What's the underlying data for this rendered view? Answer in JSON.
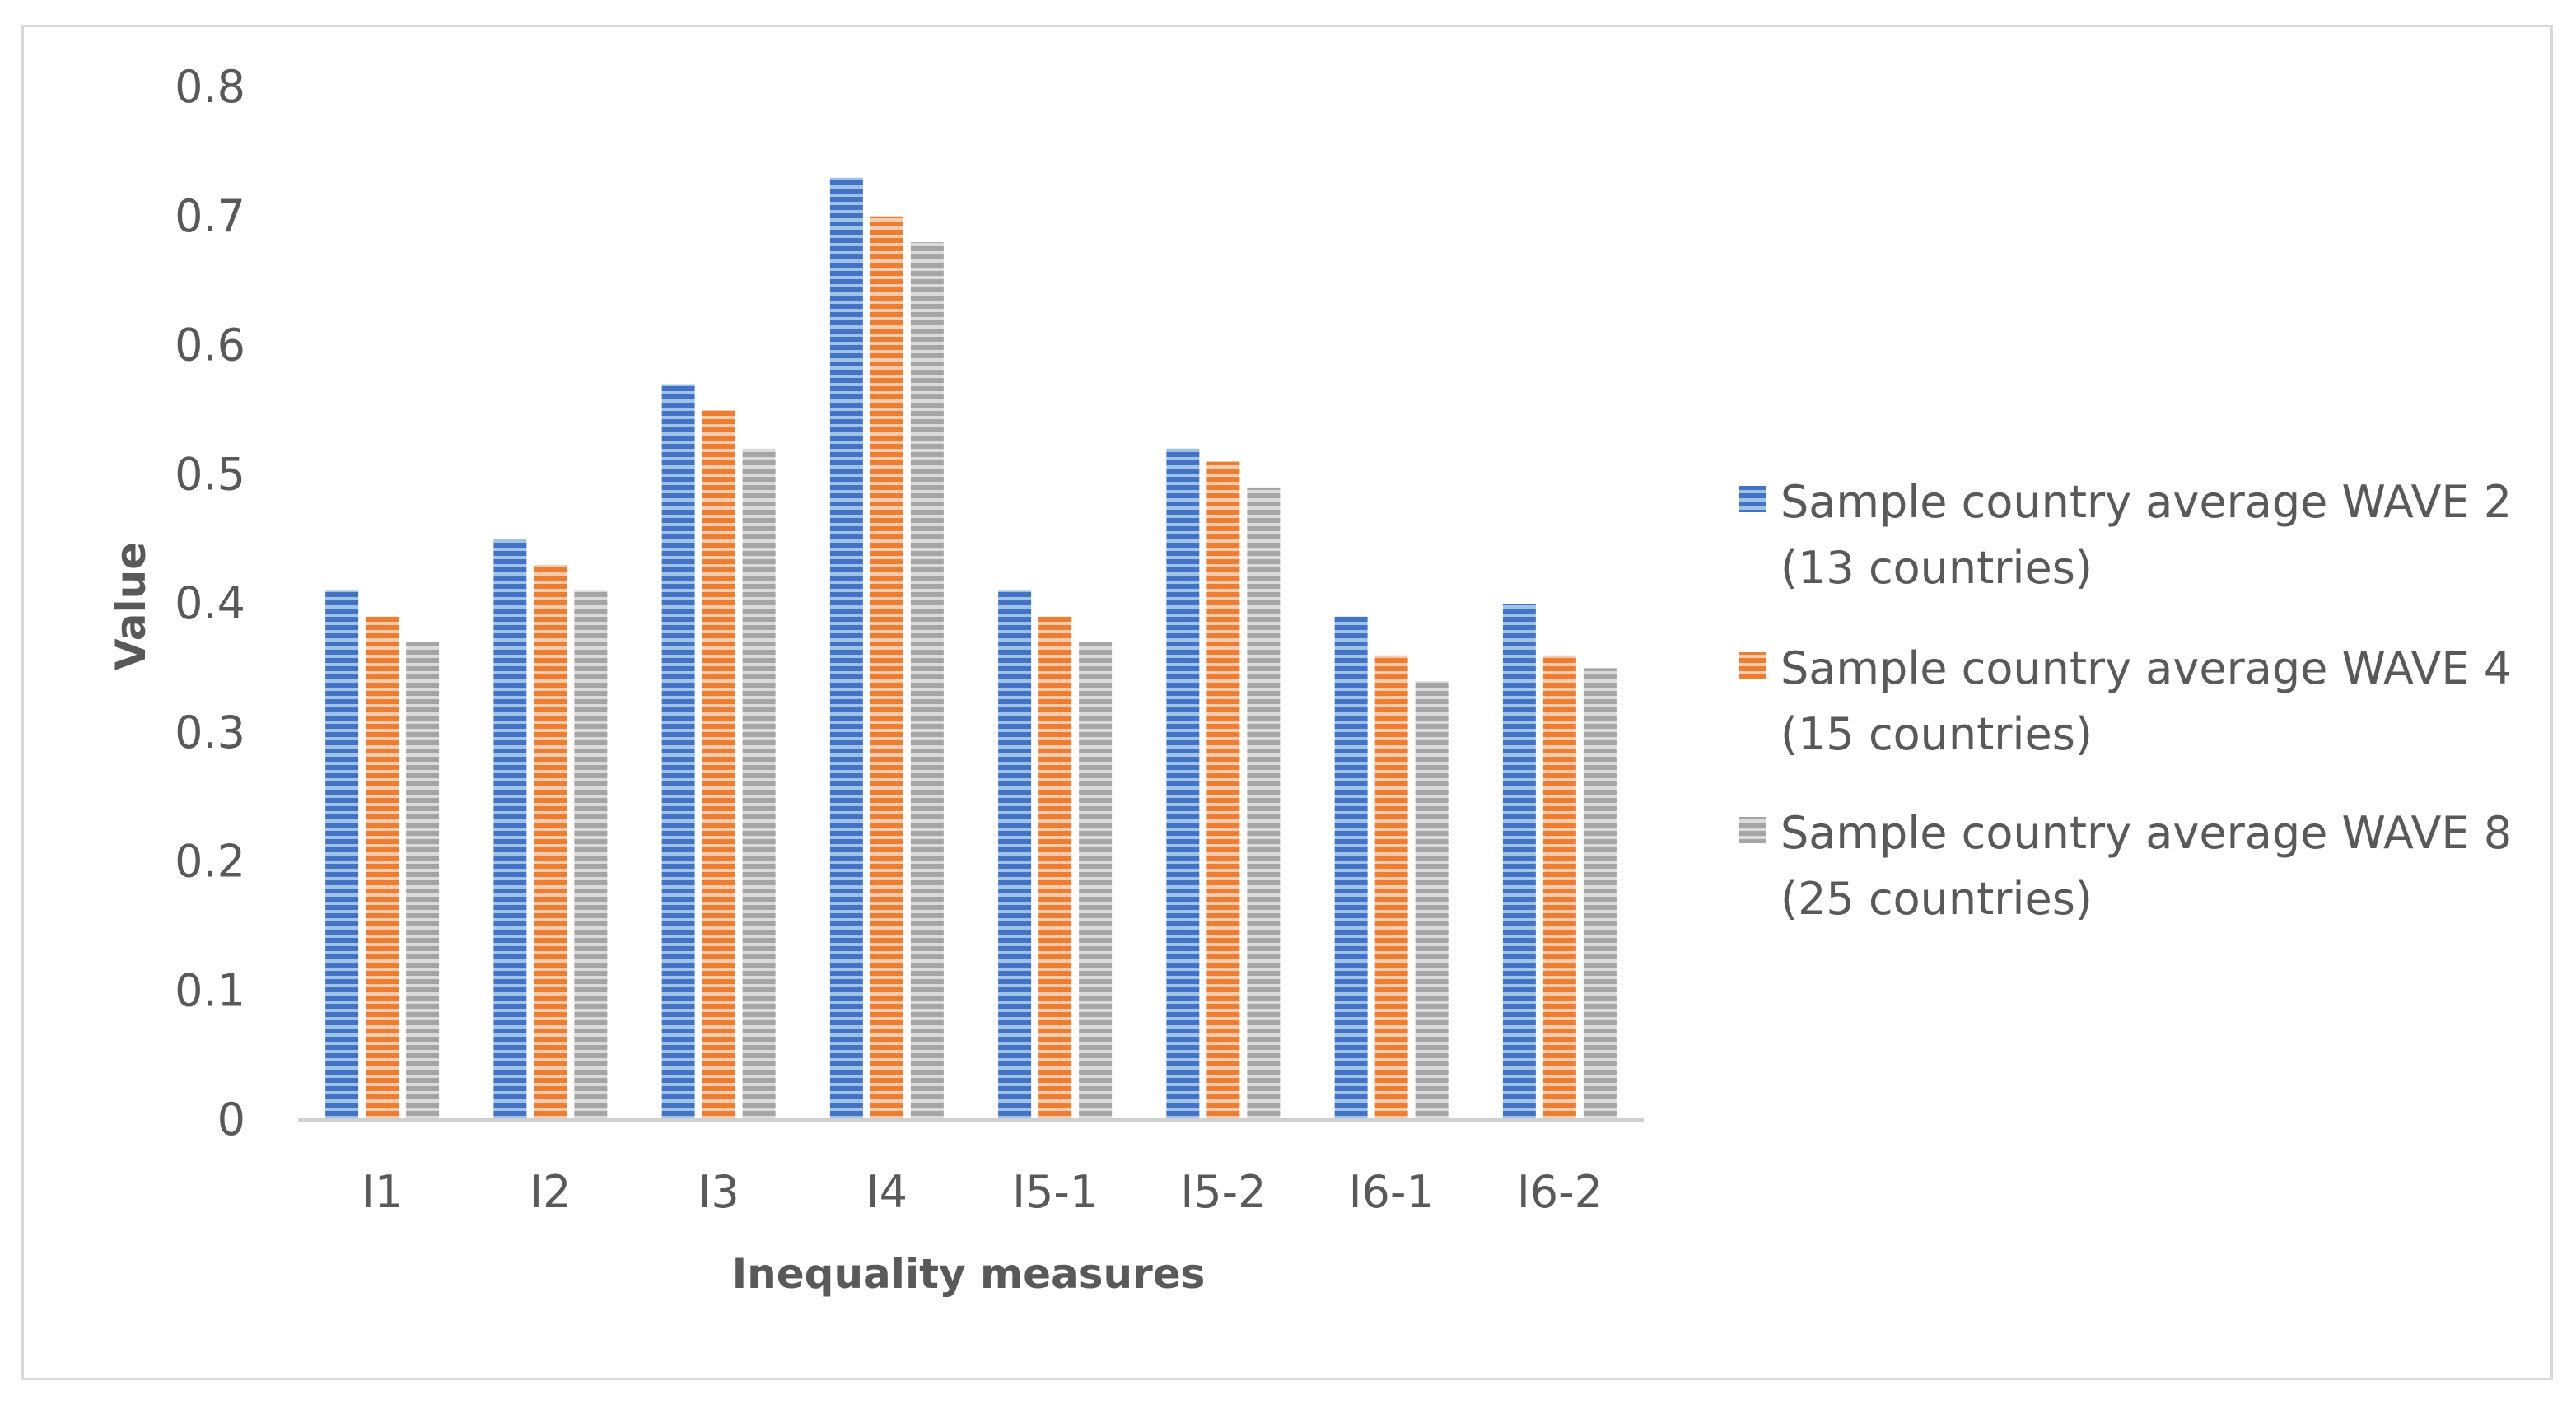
{
  "chart_data": {
    "type": "bar",
    "title": "",
    "xlabel": "Inequality measures",
    "ylabel": "Value",
    "ylim": [
      0,
      0.8
    ],
    "yticks": [
      0,
      0.1,
      0.2,
      0.3,
      0.4,
      0.5,
      0.6,
      0.7,
      0.8
    ],
    "ytick_labels": [
      "0",
      "0.1",
      "0.2",
      "0.3",
      "0.4",
      "0.5",
      "0.6",
      "0.7",
      "0.8"
    ],
    "categories": [
      "I1",
      "I2",
      "I3",
      "I4",
      "I5-1",
      "I5-2",
      "I6-1",
      "I6-2"
    ],
    "grid": false,
    "legend_position": "right",
    "series": [
      {
        "name": "Sample country average WAVE 2 (13 countries)",
        "legend_lines": [
          "Sample country average WAVE 2",
          "(13 countries)"
        ],
        "color": "#4472C4",
        "stripe": "#9DC3E6",
        "values": [
          0.41,
          0.45,
          0.57,
          0.73,
          0.41,
          0.52,
          0.39,
          0.4
        ]
      },
      {
        "name": "Sample country average WAVE 4 (15 countries)",
        "legend_lines": [
          "Sample country average WAVE 4",
          "(15 countries)"
        ],
        "color": "#ED7D31",
        "stripe": "#F8CBAD",
        "values": [
          0.39,
          0.43,
          0.55,
          0.7,
          0.39,
          0.51,
          0.36,
          0.36
        ]
      },
      {
        "name": "Sample country average WAVE 8 (25 countries)",
        "legend_lines": [
          "Sample country average WAVE 8",
          "(25 countries)"
        ],
        "color": "#A5A5A5",
        "stripe": "#DBDBDB",
        "values": [
          0.37,
          0.41,
          0.52,
          0.68,
          0.37,
          0.49,
          0.34,
          0.35
        ]
      }
    ]
  }
}
